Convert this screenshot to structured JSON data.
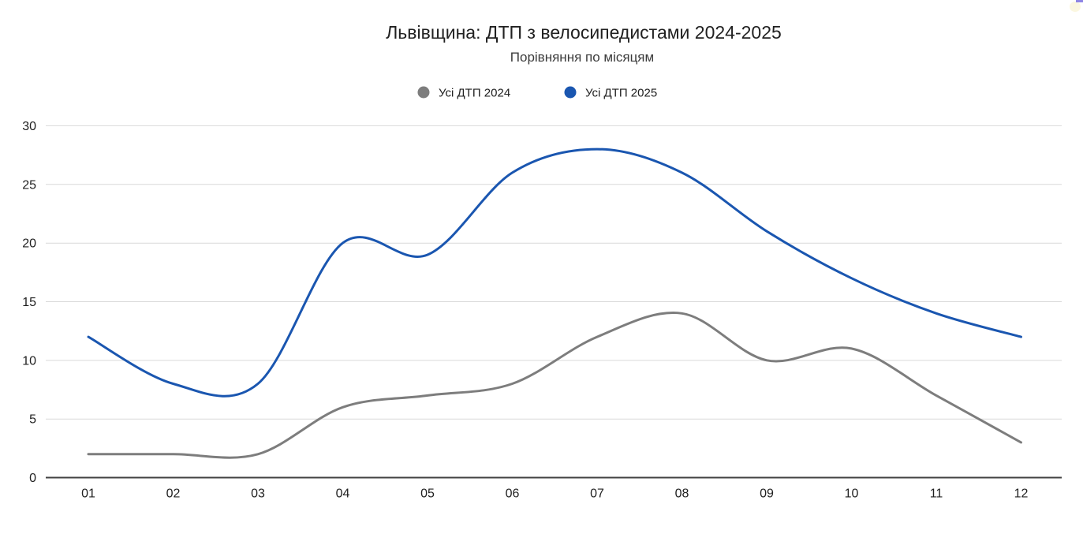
{
  "window": {
    "background": "#ffffff"
  },
  "chart_data": {
    "type": "line",
    "title": "Львівщина: ДТП з велосипедистами 2024-2025",
    "subtitle": "Порівняння по місяцям",
    "categories": [
      "01",
      "02",
      "03",
      "04",
      "05",
      "06",
      "07",
      "08",
      "09",
      "10",
      "11",
      "12"
    ],
    "series": [
      {
        "name": "Усі ДТП 2024",
        "color": "#7d7d7d",
        "values": [
          2,
          2,
          2,
          6,
          7,
          8,
          12,
          14,
          10,
          11,
          7,
          3
        ]
      },
      {
        "name": "Усі ДТП 2025",
        "color": "#1a56b0",
        "values": [
          12,
          8,
          8,
          20,
          19,
          26,
          28,
          26,
          21,
          17,
          14,
          12
        ]
      }
    ],
    "yticks": [
      0,
      5,
      10,
      15,
      20,
      25,
      30
    ],
    "ylim": [
      0,
      30
    ],
    "xlabel": "",
    "ylabel": "",
    "grid": "horizontal-only",
    "gridline_color": "#d9d9d9",
    "axis_line_color": "#424242",
    "legend_position": "top-center",
    "curve": "smooth"
  }
}
